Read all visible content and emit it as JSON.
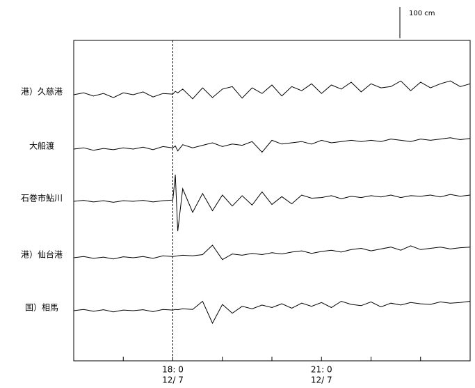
{
  "chart_data": {
    "type": "line",
    "scale_bar": {
      "value": 100,
      "label": "100 cm"
    },
    "xlim": [
      16,
      24
    ],
    "xticks": [
      {
        "value": 18,
        "label": "18: 0"
      },
      {
        "value": 21,
        "label": "21: 0"
      }
    ],
    "xtick_sublabels": [
      "12/ 7",
      "12/ 7"
    ],
    "minor_xticks": [
      17,
      19,
      20,
      22,
      23
    ],
    "vline": 18,
    "x": [
      16,
      16.2,
      16.4,
      16.6,
      16.8,
      17,
      17.2,
      17.4,
      17.6,
      17.8,
      18,
      18.05,
      18.1,
      18.2,
      18.4,
      18.6,
      18.8,
      19,
      19.2,
      19.4,
      19.6,
      19.8,
      20,
      20.2,
      20.4,
      20.6,
      20.8,
      21,
      21.2,
      21.4,
      21.6,
      21.8,
      22,
      22.2,
      22.4,
      22.6,
      22.8,
      23,
      23.2,
      23.4,
      23.6,
      23.8,
      24
    ],
    "series": [
      {
        "name": "港）久慈港",
        "color": "#000000",
        "values": [
          0,
          6,
          -4,
          4,
          -9,
          6,
          0,
          9,
          -7,
          4,
          2,
          11,
          6,
          18,
          -13,
          22,
          -9,
          18,
          26,
          -11,
          22,
          4,
          31,
          -4,
          26,
          13,
          35,
          4,
          31,
          18,
          40,
          9,
          35,
          22,
          26,
          44,
          13,
          40,
          22,
          35,
          44,
          26,
          35
        ]
      },
      {
        "name": "大船渡",
        "color": "#000000",
        "values": [
          0,
          4,
          -4,
          2,
          -2,
          4,
          0,
          6,
          -2,
          8,
          4,
          10,
          -6,
          14,
          4,
          12,
          20,
          8,
          16,
          12,
          24,
          -10,
          28,
          16,
          20,
          24,
          16,
          28,
          20,
          24,
          28,
          24,
          28,
          24,
          32,
          28,
          24,
          32,
          28,
          32,
          36,
          30,
          34
        ]
      },
      {
        "name": "石巻市鮎川",
        "color": "#000000",
        "values": [
          0,
          3,
          -2,
          2,
          -3,
          2,
          0,
          3,
          -2,
          2,
          4,
          85,
          -95,
          40,
          -35,
          25,
          -30,
          20,
          -15,
          18,
          -12,
          30,
          -10,
          15,
          -8,
          20,
          10,
          12,
          18,
          8,
          16,
          12,
          18,
          14,
          20,
          12,
          18,
          16,
          20,
          14,
          22,
          16,
          20
        ]
      },
      {
        "name": "港）仙台港",
        "color": "#000000",
        "values": [
          0,
          4,
          -2,
          2,
          -4,
          3,
          0,
          4,
          -2,
          6,
          4,
          5,
          6,
          8,
          6,
          10,
          40,
          -6,
          12,
          8,
          14,
          10,
          16,
          12,
          18,
          22,
          14,
          20,
          24,
          18,
          26,
          30,
          22,
          28,
          34,
          24,
          38,
          26,
          30,
          34,
          28,
          32,
          34
        ]
      },
      {
        "name": "国）相馬",
        "color": "#000000",
        "values": [
          0,
          4,
          -2,
          3,
          -4,
          2,
          0,
          3,
          -3,
          4,
          2,
          4,
          3,
          6,
          4,
          30,
          -40,
          20,
          -8,
          14,
          6,
          18,
          10,
          22,
          8,
          24,
          14,
          26,
          10,
          30,
          20,
          16,
          28,
          12,
          24,
          18,
          26,
          22,
          20,
          28,
          24,
          26,
          30
        ]
      }
    ]
  }
}
